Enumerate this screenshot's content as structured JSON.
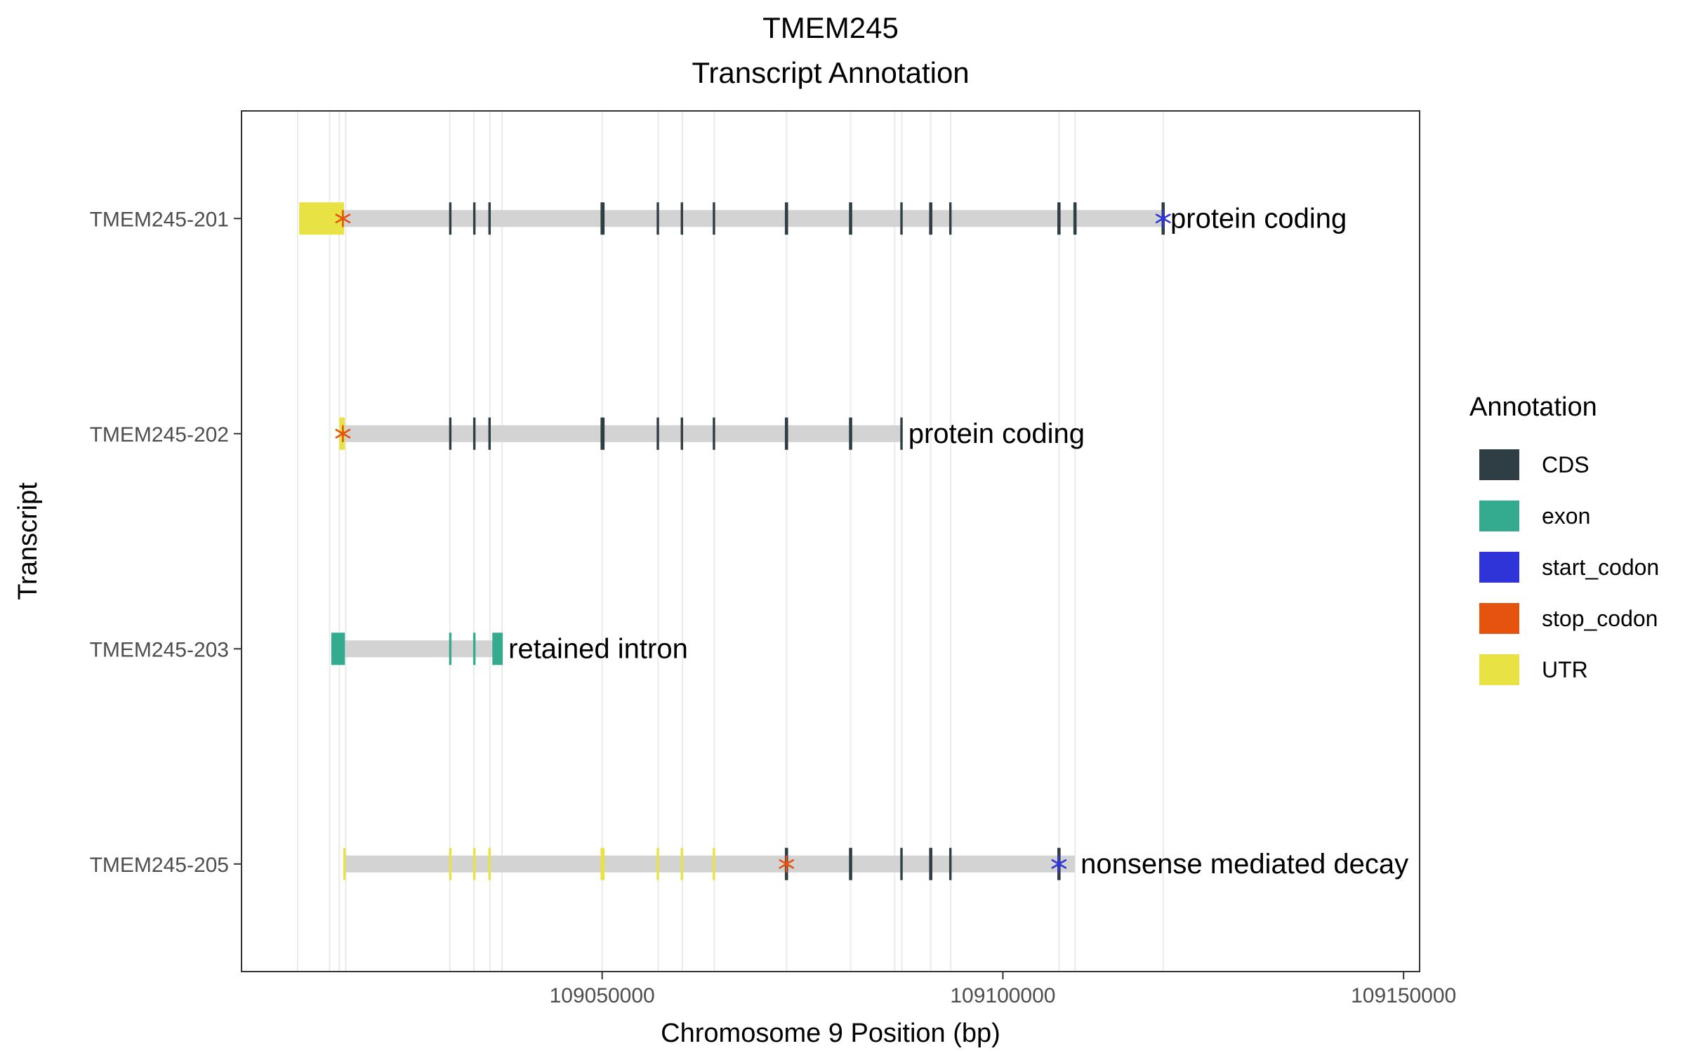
{
  "chart_data": {
    "type": "gene-track",
    "title": "TMEM245",
    "subtitle": "Transcript Annotation",
    "xlabel": "Chromosome 9 Position (bp)",
    "ylabel": "Transcript",
    "xlim": [
      109005000,
      109152000
    ],
    "x_ticks": [
      {
        "value": 109050000,
        "label": "109050000"
      },
      {
        "value": 109100000,
        "label": "109100000"
      },
      {
        "value": 109150000,
        "label": "109150000"
      }
    ],
    "vertical_guides": [
      109012000,
      109016000,
      109017200,
      109018000,
      109031000,
      109034000,
      109036000,
      109037500,
      109050000,
      109057000,
      109060000,
      109064000,
      109073000,
      109081000,
      109086500,
      109087400,
      109091000,
      109093500,
      109107000,
      109109000,
      109120000
    ],
    "colors": {
      "intron": "#d3d3d3",
      "CDS": "#2f3d45",
      "exon": "#34ab8f",
      "start_codon": "#2e34d8",
      "stop_codon": "#e5530f",
      "UTR": "#e9e245"
    },
    "legend": {
      "title": "Annotation",
      "position": "right",
      "items": [
        {
          "key": "CDS",
          "label": "CDS"
        },
        {
          "key": "exon",
          "label": "exon"
        },
        {
          "key": "start_codon",
          "label": "start_codon"
        },
        {
          "key": "stop_codon",
          "label": "stop_codon"
        },
        {
          "key": "UTR",
          "label": "UTR"
        }
      ]
    },
    "transcripts": [
      {
        "name": "TMEM245-205",
        "label": "nonsense mediated decay",
        "start": 109017800,
        "end": 109109000,
        "features": [
          {
            "type": "UTR",
            "start": 109017700,
            "end": 109018000
          },
          {
            "type": "UTR",
            "start": 109030900,
            "end": 109031200
          },
          {
            "type": "UTR",
            "start": 109033900,
            "end": 109034200
          },
          {
            "type": "UTR",
            "start": 109035800,
            "end": 109036100
          },
          {
            "type": "UTR",
            "start": 109049800,
            "end": 109050300
          },
          {
            "type": "UTR",
            "start": 109056800,
            "end": 109057100
          },
          {
            "type": "UTR",
            "start": 109059800,
            "end": 109060100
          },
          {
            "type": "UTR",
            "start": 109063800,
            "end": 109064100
          },
          {
            "type": "CDS",
            "start": 109072800,
            "end": 109073200
          },
          {
            "type": "CDS",
            "start": 109080800,
            "end": 109081200
          },
          {
            "type": "CDS",
            "start": 109087200,
            "end": 109087500
          },
          {
            "type": "CDS",
            "start": 109090800,
            "end": 109091200
          },
          {
            "type": "CDS",
            "start": 109093300,
            "end": 109093600
          },
          {
            "type": "CDS",
            "start": 109106800,
            "end": 109107200
          },
          {
            "type": "stop_codon",
            "start": 109072900,
            "end": 109073100
          },
          {
            "type": "start_codon",
            "start": 109106900,
            "end": 109107100
          }
        ]
      },
      {
        "name": "TMEM245-203",
        "label": "retained intron",
        "start": 109016200,
        "end": 109037600,
        "features": [
          {
            "type": "exon",
            "start": 109016200,
            "end": 109017900
          },
          {
            "type": "exon",
            "start": 109030900,
            "end": 109031200
          },
          {
            "type": "exon",
            "start": 109033900,
            "end": 109034200
          },
          {
            "type": "exon",
            "start": 109036300,
            "end": 109037600
          }
        ]
      },
      {
        "name": "TMEM245-202",
        "label": "protein coding",
        "start": 109017200,
        "end": 109087500,
        "features": [
          {
            "type": "UTR",
            "start": 109017200,
            "end": 109017900
          },
          {
            "type": "CDS",
            "start": 109030900,
            "end": 109031200
          },
          {
            "type": "CDS",
            "start": 109033900,
            "end": 109034200
          },
          {
            "type": "CDS",
            "start": 109035800,
            "end": 109036100
          },
          {
            "type": "CDS",
            "start": 109049800,
            "end": 109050300
          },
          {
            "type": "CDS",
            "start": 109056800,
            "end": 109057100
          },
          {
            "type": "CDS",
            "start": 109059800,
            "end": 109060100
          },
          {
            "type": "CDS",
            "start": 109063800,
            "end": 109064100
          },
          {
            "type": "CDS",
            "start": 109072800,
            "end": 109073200
          },
          {
            "type": "CDS",
            "start": 109080800,
            "end": 109081200
          },
          {
            "type": "CDS",
            "start": 109087200,
            "end": 109087500
          },
          {
            "type": "stop_codon",
            "start": 109017500,
            "end": 109017800
          }
        ]
      },
      {
        "name": "TMEM245-201",
        "label": "protein coding",
        "start": 109012200,
        "end": 109120200,
        "features": [
          {
            "type": "UTR",
            "start": 109012200,
            "end": 109017800
          },
          {
            "type": "CDS",
            "start": 109030900,
            "end": 109031200
          },
          {
            "type": "CDS",
            "start": 109033900,
            "end": 109034200
          },
          {
            "type": "CDS",
            "start": 109035800,
            "end": 109036100
          },
          {
            "type": "CDS",
            "start": 109049800,
            "end": 109050300
          },
          {
            "type": "CDS",
            "start": 109056800,
            "end": 109057100
          },
          {
            "type": "CDS",
            "start": 109059800,
            "end": 109060100
          },
          {
            "type": "CDS",
            "start": 109063800,
            "end": 109064100
          },
          {
            "type": "CDS",
            "start": 109072800,
            "end": 109073200
          },
          {
            "type": "CDS",
            "start": 109080800,
            "end": 109081200
          },
          {
            "type": "CDS",
            "start": 109087200,
            "end": 109087500
          },
          {
            "type": "CDS",
            "start": 109090800,
            "end": 109091200
          },
          {
            "type": "CDS",
            "start": 109093300,
            "end": 109093600
          },
          {
            "type": "CDS",
            "start": 109106800,
            "end": 109107200
          },
          {
            "type": "CDS",
            "start": 109108800,
            "end": 109109200
          },
          {
            "type": "CDS",
            "start": 109119800,
            "end": 109120200
          },
          {
            "type": "stop_codon",
            "start": 109017500,
            "end": 109017800
          },
          {
            "type": "start_codon",
            "start": 109119900,
            "end": 109120100
          }
        ]
      }
    ]
  }
}
